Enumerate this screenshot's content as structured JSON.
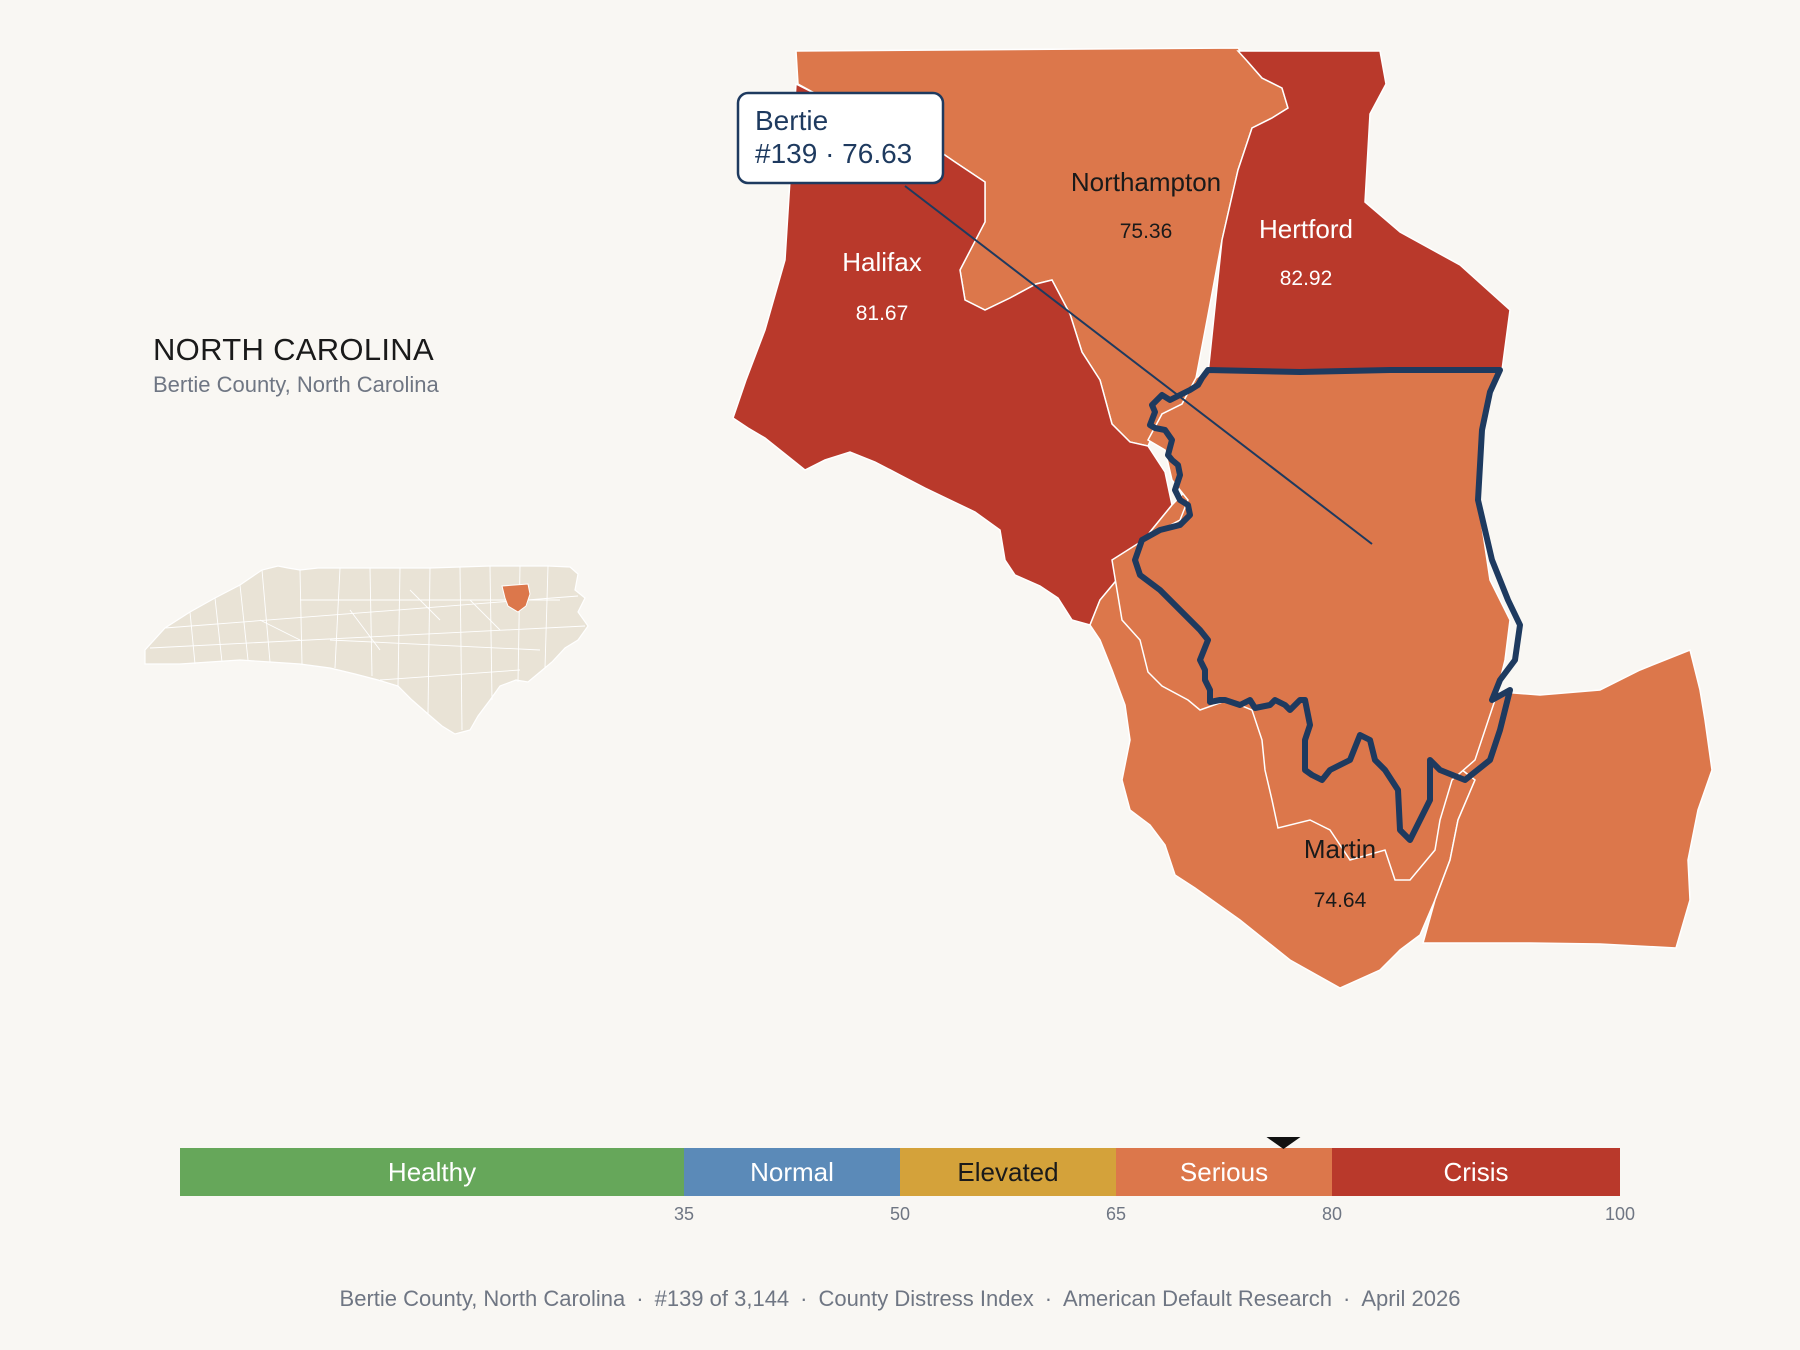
{
  "header": {
    "title": "NORTH CAROLINA",
    "subtitle": "Bertie County, North Carolina"
  },
  "callout": {
    "name": "Bertie",
    "rank_score": "#139 · 76.63"
  },
  "counties": [
    {
      "name": "Halifax",
      "value": "81.67",
      "category": "Crisis"
    },
    {
      "name": "Northampton",
      "value": "75.36",
      "category": "Serious"
    },
    {
      "name": "Hertford",
      "value": "82.92",
      "category": "Crisis"
    },
    {
      "name": "Martin",
      "value": "74.64",
      "category": "Serious"
    }
  ],
  "scale": {
    "min": 0,
    "max": 100,
    "marker_value": 76.63,
    "bands": [
      {
        "label": "Healthy",
        "from": 0,
        "to": 35,
        "color": "#66a75a"
      },
      {
        "label": "Normal",
        "from": 35,
        "to": 50,
        "color": "#5b8ab8"
      },
      {
        "label": "Elevated",
        "from": 50,
        "to": 65,
        "color": "#d4a23a"
      },
      {
        "label": "Serious",
        "from": 65,
        "to": 80,
        "color": "#dc774b"
      },
      {
        "label": "Crisis",
        "from": 80,
        "to": 100,
        "color": "#b9392b"
      }
    ],
    "ticks": [
      "35",
      "50",
      "65",
      "80",
      "100"
    ]
  },
  "colors": {
    "crisis": "#b9392b",
    "serious": "#dc774b",
    "highlight_outline": "#1e3a5f",
    "inset_fill": "#e9e3d6"
  },
  "footer": {
    "county": "Bertie County, North Carolina",
    "rank": "#139 of 3,144",
    "index": "County Distress Index",
    "source": "American Default Research",
    "date": "April 2026",
    "separator": "·"
  }
}
